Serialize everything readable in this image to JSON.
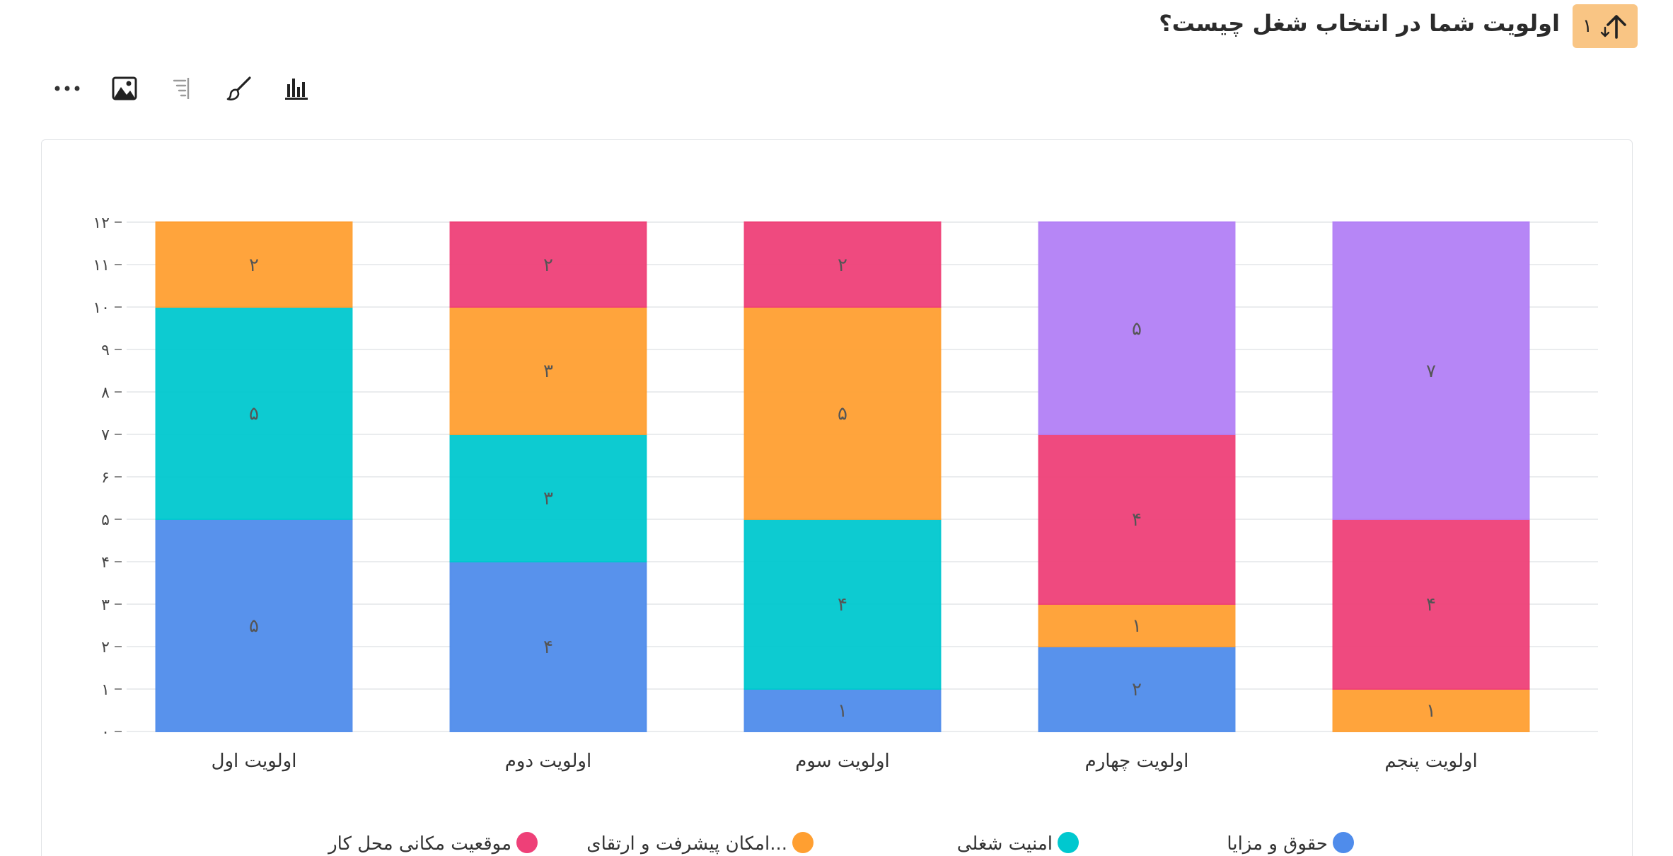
{
  "question": {
    "number": "۱",
    "title": "اولویت شما در انتخاب شغل چیست؟"
  },
  "toolbar": {
    "icons": [
      "chart-type-icon",
      "paint-brush-icon",
      "sort-icon",
      "image-icon",
      "more-icon"
    ]
  },
  "colors": {
    "badge": "#f9c584",
    "blue": "#4f8ceb",
    "teal": "#00c8cf",
    "orange": "#ff9f31",
    "pink": "#ee4078",
    "purple": "#b27ff6",
    "grid": "#e4e6e8",
    "axis_text": "#444444"
  },
  "chart_data": {
    "type": "bar",
    "stacked": true,
    "title": "اولویت شما در انتخاب شغل چیست؟",
    "categories": [
      "اولویت اول",
      "اولویت دوم",
      "اولویت سوم",
      "اولویت چهارم",
      "اولویت پنجم"
    ],
    "ylim": [
      0,
      12
    ],
    "yticks": [
      "۰",
      "۱",
      "۲",
      "۳",
      "۴",
      "۵",
      "۶",
      "۷",
      "۸",
      "۹",
      "۱۰",
      "۱۱",
      "۱۲"
    ],
    "series": [
      {
        "name": "حقوق و مزایا",
        "color": "#4f8ceb",
        "values": [
          5,
          4,
          1,
          2,
          0
        ],
        "labels": [
          "۵",
          "۴",
          "۱",
          "۲",
          ""
        ]
      },
      {
        "name": "امنیت شغلی",
        "color": "#00c8cf",
        "values": [
          5,
          3,
          4,
          0,
          0
        ],
        "labels": [
          "۵",
          "۳",
          "۴",
          "",
          ""
        ]
      },
      {
        "name": "امکان پیشرفت و ارتقای...",
        "color": "#ff9f31",
        "values": [
          2,
          3,
          5,
          1,
          1
        ],
        "labels": [
          "۲",
          "۳",
          "۵",
          "۱",
          "۱"
        ]
      },
      {
        "name": "موقعیت مکانی محل کار",
        "color": "#ee4078",
        "values": [
          0,
          2,
          2,
          4,
          4
        ],
        "labels": [
          "",
          "۲",
          "۲",
          "۴",
          "۴"
        ]
      },
      {
        "name": "",
        "color": "#b27ff6",
        "values": [
          0,
          0,
          0,
          5,
          7
        ],
        "labels": [
          "",
          "",
          "",
          "۵",
          "۷"
        ]
      }
    ],
    "legend": [
      "حقوق و مزایا",
      "امنیت شغلی",
      "امکان پیشرفت و ارتقای...",
      "موقعیت مکانی محل کار"
    ],
    "legend_position": "bottom",
    "grid": true
  }
}
